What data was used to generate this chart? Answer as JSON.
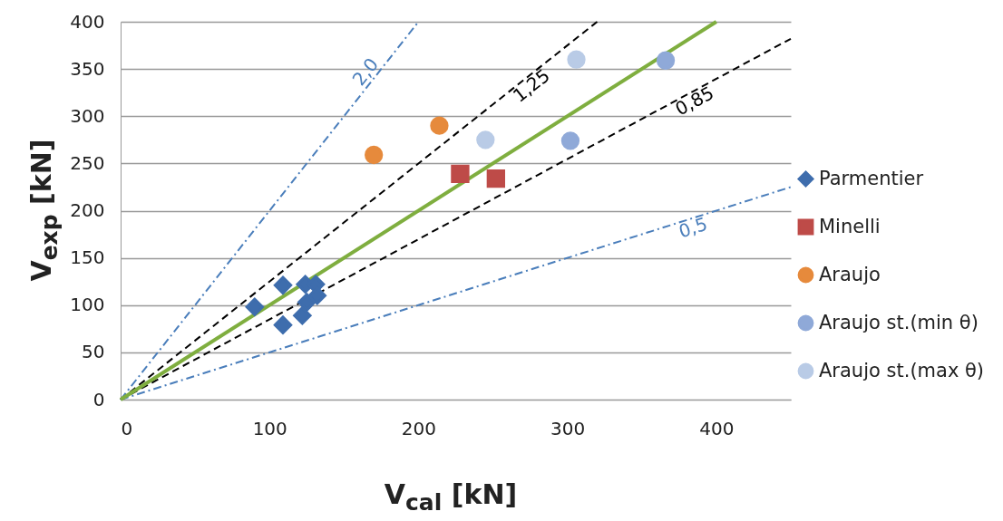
{
  "chart_data": {
    "type": "scatter",
    "xlabel": "V$_{cal}$ [kN]",
    "ylabel": "V$_{exp}$ [kN]",
    "xlim": [
      0,
      450
    ],
    "xticks": [
      0,
      100,
      200,
      300,
      400
    ],
    "ylim": [
      0,
      400
    ],
    "yticks": [
      0,
      50,
      100,
      150,
      200,
      250,
      300,
      350,
      400
    ],
    "grid": "y",
    "legend": "right",
    "series": [
      {
        "type": "line",
        "name": "2,0",
        "color": "#4a7ebb",
        "line_style": "dashdot",
        "x": [
          0,
          200
        ],
        "values": [
          0,
          400
        ]
      },
      {
        "type": "line",
        "name": "1,25",
        "color": "#000000",
        "line_style": "dashed",
        "x": [
          0,
          320
        ],
        "values": [
          0,
          400
        ]
      },
      {
        "type": "line",
        "name": "0,85",
        "color": "#000000",
        "line_style": "dashed",
        "x": [
          0,
          450
        ],
        "values": [
          0,
          382
        ]
      },
      {
        "type": "line",
        "name": "0,5",
        "color": "#4a7ebb",
        "line_style": "dashdot",
        "x": [
          0,
          450
        ],
        "values": [
          0,
          225
        ]
      },
      {
        "type": "line",
        "color": "#7fae3f",
        "line_style": "solid",
        "x": [
          0,
          400
        ],
        "values": [
          0,
          400
        ]
      },
      {
        "name": "Parmentier",
        "color": "#3e6dad",
        "marker": "diamond",
        "x": [
          90,
          109,
          109,
          124,
          131,
          132,
          125,
          122
        ],
        "values": [
          98,
          121,
          79,
          122,
          122,
          110,
          103,
          89
        ]
      },
      {
        "name": "Minelli",
        "color": "#be4b48",
        "marker": "square",
        "x": [
          228,
          252
        ],
        "values": [
          239,
          234
        ]
      },
      {
        "name": "Araujo",
        "color": "#e68a3c",
        "marker": "circle",
        "x": [
          170,
          214
        ],
        "values": [
          259,
          290
        ]
      },
      {
        "name": "Araujo st.(min θ)",
        "color": "#8fa9d8",
        "marker": "circle",
        "x": [
          302,
          366
        ],
        "values": [
          274,
          359
        ]
      },
      {
        "name": "Araujo st.(max θ)",
        "color": "#b9cbe6",
        "marker": "circle",
        "x": [
          245,
          306
        ],
        "values": [
          275,
          360
        ]
      }
    ]
  }
}
